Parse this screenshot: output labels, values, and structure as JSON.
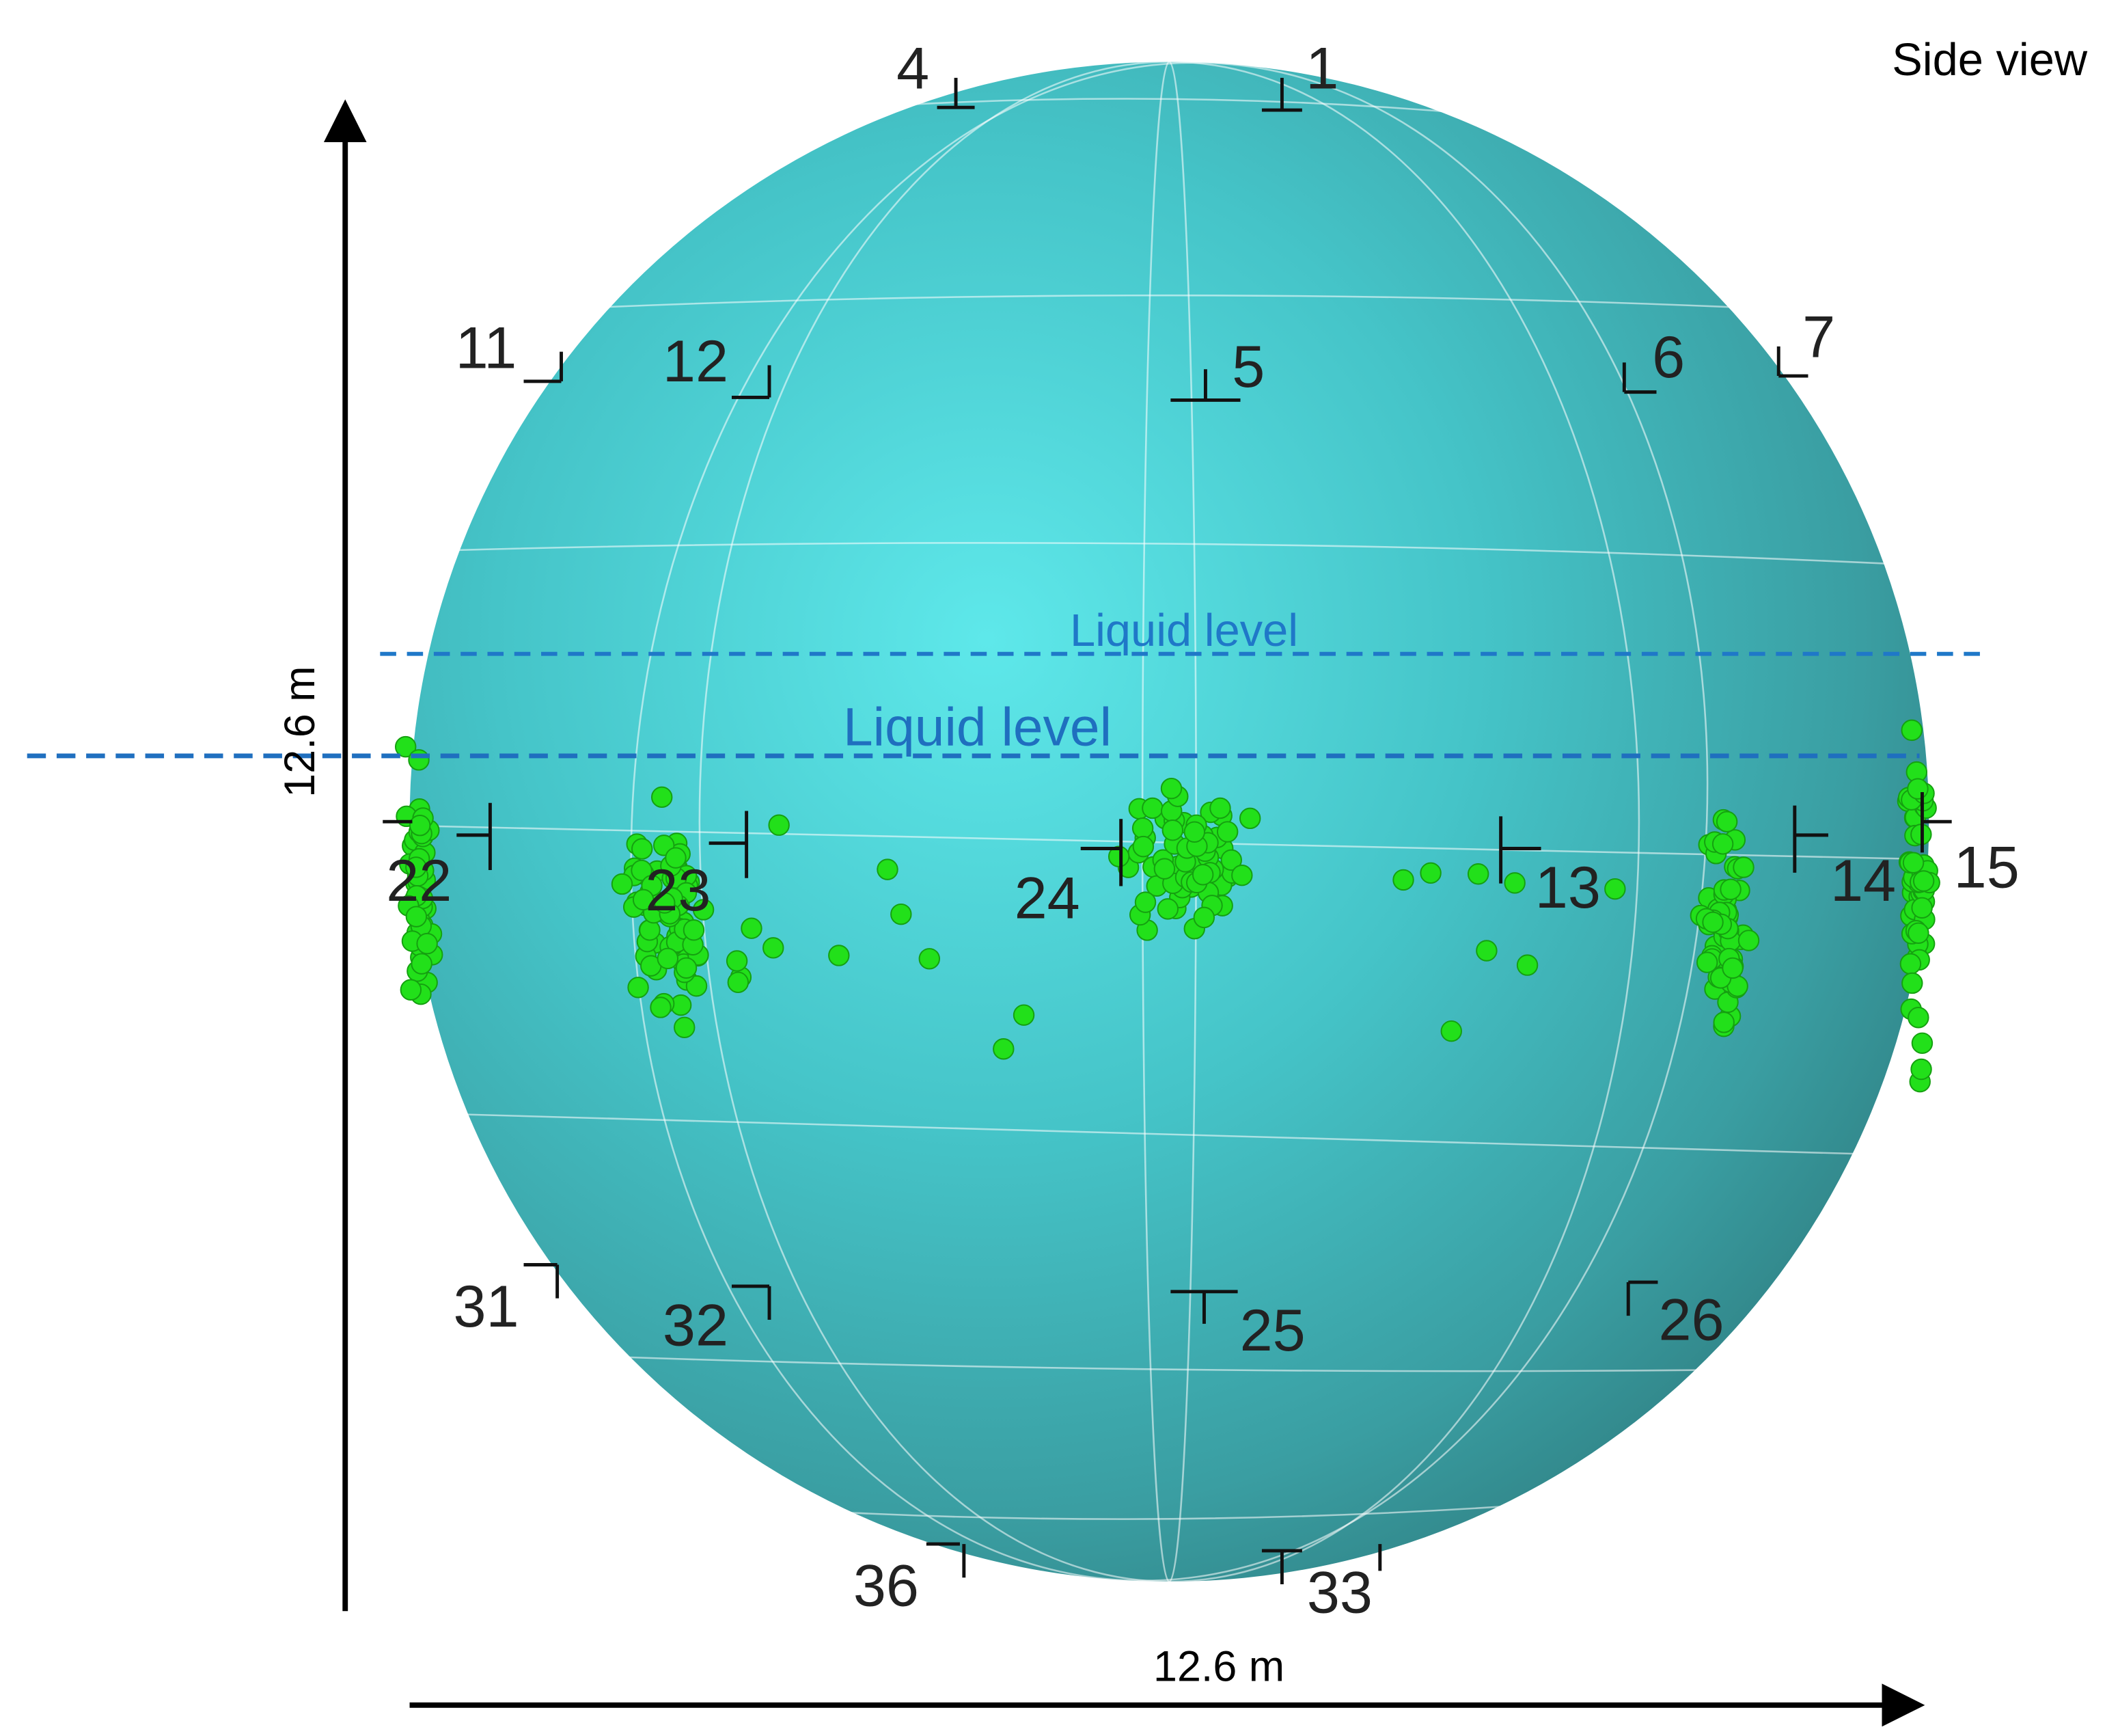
{
  "header": {
    "title": "Side view"
  },
  "liquid_levels": [
    {
      "label": "Liquid level"
    },
    {
      "label": "Liquid level"
    }
  ],
  "dimensions": {
    "height": "12.6 m",
    "width": "12.6 m"
  },
  "sensors": [
    "4",
    "1",
    "11",
    "12",
    "5",
    "6",
    "7",
    "22",
    "23",
    "24",
    "13",
    "14",
    "15",
    "31",
    "32",
    "25",
    "26",
    "36",
    "33"
  ]
}
